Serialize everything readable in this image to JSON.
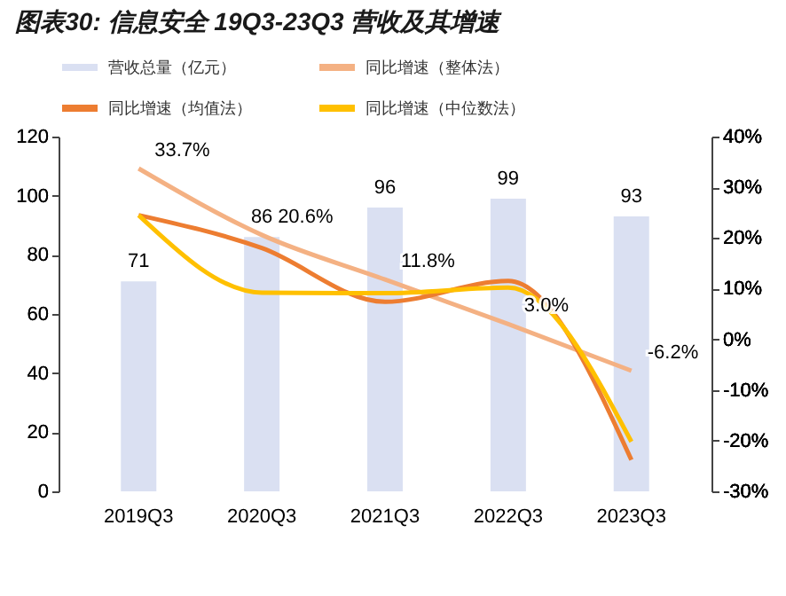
{
  "chart_data": {
    "type": "line",
    "title": "图表30:  信息安全 19Q3-23Q3 营收及其增速",
    "categories": [
      "2019Q3",
      "2020Q3",
      "2021Q3",
      "2022Q3",
      "2023Q3"
    ],
    "series": [
      {
        "name": "营收总量（亿元）",
        "type": "bar",
        "color": "#dae0f2",
        "values": [
          71,
          86,
          96,
          99,
          93
        ],
        "value_labels": [
          "71",
          "86",
          "96",
          "99",
          "93"
        ]
      },
      {
        "name": "同比增速（整体法）",
        "type": "line",
        "axis": "y2",
        "color": "#f4b183",
        "values": [
          33.7,
          20.6,
          11.8,
          3.0,
          -6.2
        ],
        "value_labels": [
          "33.7%",
          "20.6%",
          "11.8%",
          "3.0%",
          "-6.2%"
        ]
      },
      {
        "name": "同比增速（均值法）",
        "type": "line",
        "axis": "y2",
        "color": "#ed7d31",
        "values": [
          24.5,
          18,
          7.4,
          11.5,
          -23.8
        ]
      },
      {
        "name": "同比增速（中位数法）",
        "axis": "y2",
        "color": "#ffc000",
        "values": [
          24.5,
          9.2,
          9.1,
          10.2,
          -20.2
        ]
      }
    ],
    "ylim": [
      0,
      120
    ],
    "yticks": [
      0,
      20,
      40,
      60,
      80,
      100,
      120
    ],
    "y2lim": [
      -30,
      40
    ],
    "y2ticks": [
      {
        "value": -30,
        "label": "-30%"
      },
      {
        "value": -20,
        "label": "-20%"
      },
      {
        "value": -10,
        "label": "-10%"
      },
      {
        "value": 0,
        "label": "0%"
      },
      {
        "value": 10,
        "label": "10%"
      },
      {
        "value": 20,
        "label": "20%"
      },
      {
        "value": 30,
        "label": "30%"
      },
      {
        "value": 40,
        "label": "40%"
      }
    ],
    "grid": false,
    "legend": "top"
  }
}
